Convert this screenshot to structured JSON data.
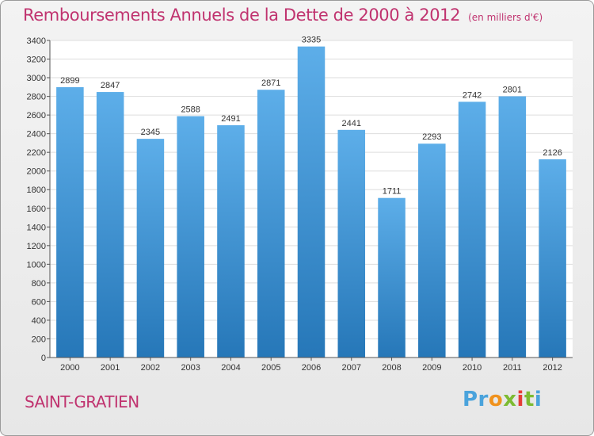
{
  "header": {
    "title": "Remboursements Annuels de la Dette de 2000 à 2012",
    "subtitle": "(en milliers d'€)"
  },
  "footer": {
    "city": "SAINT-GRATIEN",
    "logo_text": "Proxiti"
  },
  "colors": {
    "title": "#c0336f",
    "bar_top": "#5daee9",
    "bar_bottom": "#2677b8",
    "plot_background": "#ffffff",
    "grid": "#dddddd"
  },
  "chart_data": {
    "type": "bar",
    "title": "Remboursements Annuels de la Dette de 2000 à 2012",
    "subtitle": "(en milliers d'€)",
    "categories": [
      "2000",
      "2001",
      "2002",
      "2003",
      "2004",
      "2005",
      "2006",
      "2007",
      "2008",
      "2009",
      "2010",
      "2011",
      "2012"
    ],
    "values": [
      2899,
      2847,
      2345,
      2588,
      2491,
      2871,
      3335,
      2441,
      1711,
      2293,
      2742,
      2801,
      2126
    ],
    "ylim": [
      0,
      3400
    ],
    "ytick_step": 200,
    "grid": true,
    "data_labels": true,
    "legend": "none"
  }
}
